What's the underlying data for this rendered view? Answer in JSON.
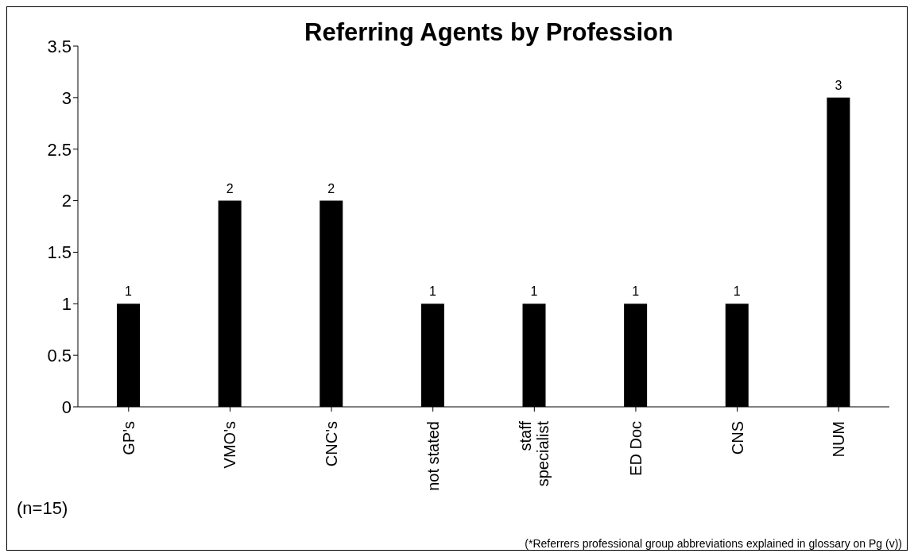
{
  "chart_data": {
    "type": "bar",
    "title": "Referring Agents by Profession",
    "categories": [
      "GP's",
      "VMO's",
      "CNC's",
      "not stated",
      "staff specialist",
      "ED Doc",
      "CNS",
      "NUM"
    ],
    "values": [
      1,
      2,
      2,
      1,
      1,
      1,
      1,
      3
    ],
    "color": "#000000",
    "ylim": [
      0,
      3.5
    ],
    "yticks": [
      0,
      0.5,
      1,
      1.5,
      2,
      2.5,
      3,
      3.5
    ],
    "grid": false,
    "legend": false,
    "data_labels": true,
    "annotations": [
      "(n=15)",
      "(*Referrers professional group abbreviations explained in glossary on Pg (v))"
    ]
  }
}
